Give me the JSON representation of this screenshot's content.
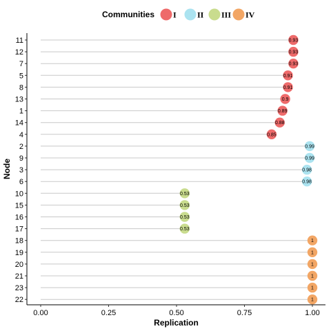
{
  "chart_data": {
    "type": "scatter",
    "subtype": "lollipop",
    "orientation": "horizontal",
    "xlabel": "Replication",
    "ylabel": "Node",
    "xlim": [
      0,
      1
    ],
    "xticks": [
      "0.00",
      "0.25",
      "0.50",
      "0.75",
      "1.00"
    ],
    "xtick_values": [
      0,
      0.25,
      0.5,
      0.75,
      1
    ],
    "grid": false,
    "legend": {
      "title": "Communities",
      "position": "top",
      "entries": [
        {
          "name": "I",
          "color": "#EE6A6A"
        },
        {
          "name": "II",
          "color": "#ABE3F0"
        },
        {
          "name": "III",
          "color": "#C9DC8E"
        },
        {
          "name": "IV",
          "color": "#F2A665"
        }
      ]
    },
    "series": [
      {
        "name": "I",
        "color": "#EE6A6A",
        "points": [
          {
            "node": "11",
            "value": 0.93,
            "label": "0.93"
          },
          {
            "node": "12",
            "value": 0.93,
            "label": "0.93"
          },
          {
            "node": "7",
            "value": 0.93,
            "label": "0.93"
          },
          {
            "node": "5",
            "value": 0.91,
            "label": "0.91"
          },
          {
            "node": "8",
            "value": 0.91,
            "label": "0.91"
          },
          {
            "node": "13",
            "value": 0.9,
            "label": "0.9"
          },
          {
            "node": "1",
            "value": 0.89,
            "label": "0.89"
          },
          {
            "node": "14",
            "value": 0.88,
            "label": "0.88"
          },
          {
            "node": "4",
            "value": 0.85,
            "label": "0.85"
          }
        ]
      },
      {
        "name": "II",
        "color": "#ABE3F0",
        "points": [
          {
            "node": "2",
            "value": 0.99,
            "label": "0.99"
          },
          {
            "node": "9",
            "value": 0.99,
            "label": "0.99"
          },
          {
            "node": "3",
            "value": 0.98,
            "label": "0.98"
          },
          {
            "node": "6",
            "value": 0.98,
            "label": "0.98"
          }
        ]
      },
      {
        "name": "III",
        "color": "#C9DC8E",
        "points": [
          {
            "node": "10",
            "value": 0.53,
            "label": "0.53"
          },
          {
            "node": "15",
            "value": 0.53,
            "label": "0.53"
          },
          {
            "node": "16",
            "value": 0.53,
            "label": "0.53"
          },
          {
            "node": "17",
            "value": 0.53,
            "label": "0.53"
          }
        ]
      },
      {
        "name": "IV",
        "color": "#F2A665",
        "points": [
          {
            "node": "18",
            "value": 1,
            "label": "1"
          },
          {
            "node": "19",
            "value": 1,
            "label": "1"
          },
          {
            "node": "20",
            "value": 1,
            "label": "1"
          },
          {
            "node": "21",
            "value": 1,
            "label": "1"
          },
          {
            "node": "23",
            "value": 1,
            "label": "1"
          },
          {
            "node": "22",
            "value": 1,
            "label": "1"
          }
        ]
      }
    ]
  }
}
